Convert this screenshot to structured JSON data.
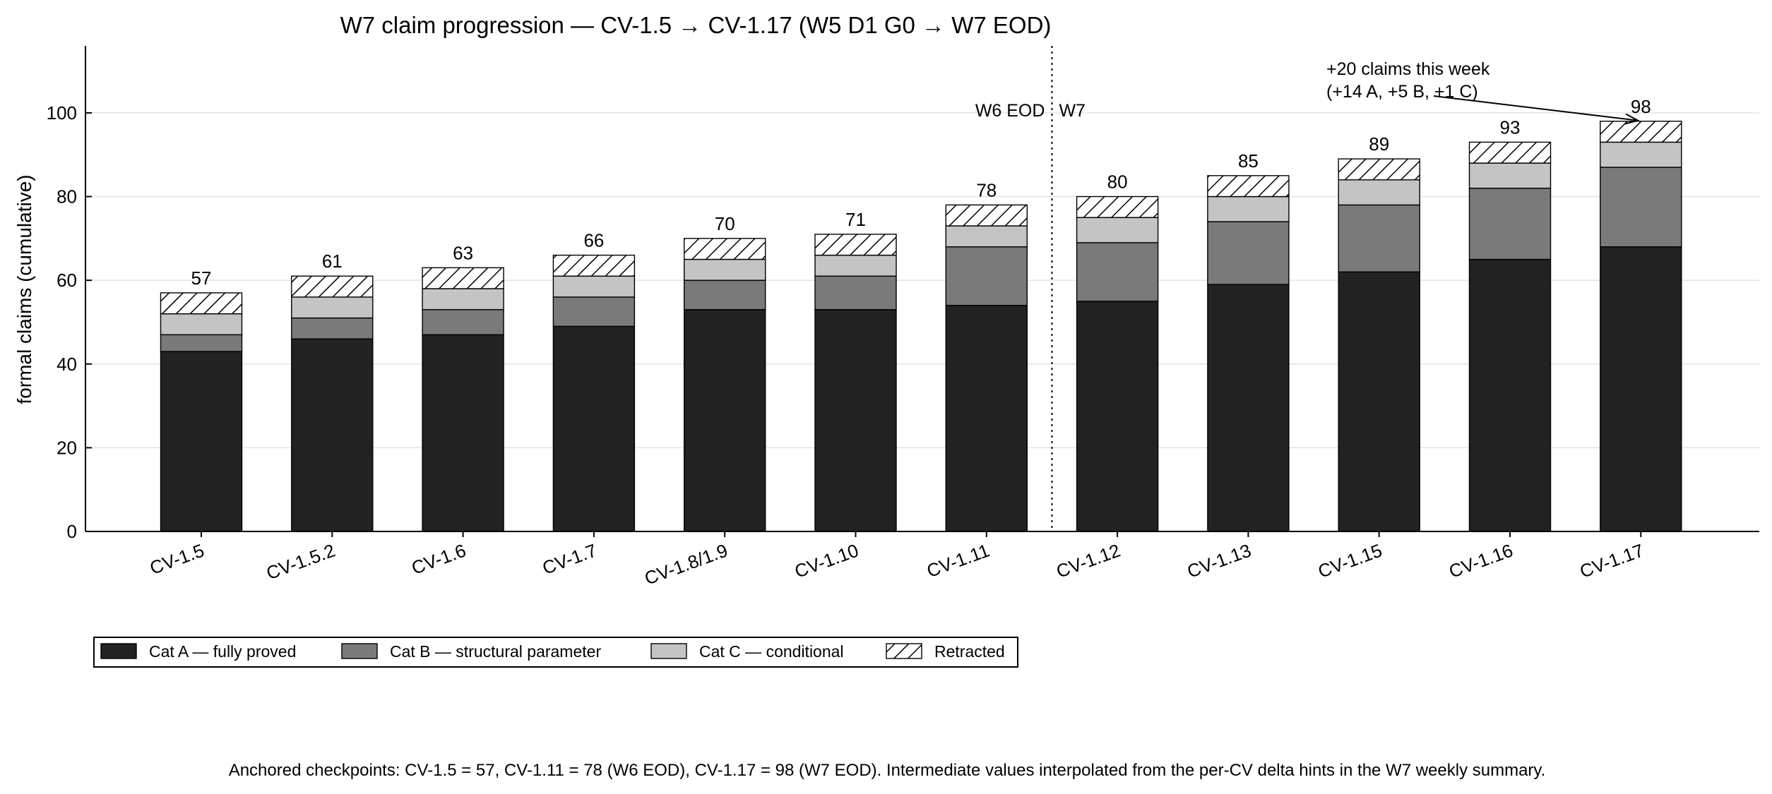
{
  "chart_data": {
    "type": "bar",
    "stacked": true,
    "title": "W7 claim progression — CV-1.5 → CV-1.17 (W5 D1 G0 → W7 EOD)",
    "xlabel": "",
    "ylabel": "formal claims (cumulative)",
    "ylim": [
      0,
      116
    ],
    "yticks": [
      0,
      20,
      40,
      60,
      80,
      100
    ],
    "grid": "horizontal",
    "categories": [
      "CV-1.5",
      "CV-1.5.2",
      "CV-1.6",
      "CV-1.7",
      "CV-1.8/1.9",
      "CV-1.10",
      "CV-1.11",
      "CV-1.12",
      "CV-1.13",
      "CV-1.15",
      "CV-1.16",
      "CV-1.17"
    ],
    "series": [
      {
        "name": "Cat A — fully proved",
        "color": "#222222",
        "pattern": "solid",
        "values": [
          43,
          46,
          47,
          49,
          53,
          53,
          54,
          55,
          59,
          62,
          65,
          68
        ]
      },
      {
        "name": "Cat B — structural parameter",
        "color": "#7a7a7a",
        "pattern": "solid",
        "values": [
          4,
          5,
          6,
          7,
          7,
          8,
          14,
          14,
          15,
          16,
          17,
          19
        ]
      },
      {
        "name": "Cat C — conditional",
        "color": "#c4c4c4",
        "pattern": "solid",
        "values": [
          5,
          5,
          5,
          5,
          5,
          5,
          5,
          6,
          6,
          6,
          6,
          6
        ]
      },
      {
        "name": "Retracted",
        "color": "#ffffff",
        "pattern": "hatch",
        "values": [
          5,
          5,
          5,
          5,
          5,
          5,
          5,
          5,
          5,
          5,
          5,
          5
        ]
      }
    ],
    "totals": [
      57,
      61,
      63,
      66,
      70,
      71,
      78,
      80,
      85,
      89,
      93,
      98
    ],
    "divider": {
      "after_category": "CV-1.11",
      "left_label": "W6 EOD",
      "right_label": "W7",
      "label_y": 100
    },
    "annotation": {
      "lines": [
        "+20 claims this week",
        "(+14 A, +5 B, +1 C)"
      ],
      "target_category": "CV-1.17",
      "target_value": 98
    },
    "legend": {
      "placement": "below-left"
    },
    "footnote": "Anchored checkpoints: CV-1.5 = 57, CV-1.11 = 78 (W6 EOD), CV-1.17 = 98 (W7 EOD). Intermediate values interpolated from the per-CV delta hints in the W7 weekly summary."
  }
}
